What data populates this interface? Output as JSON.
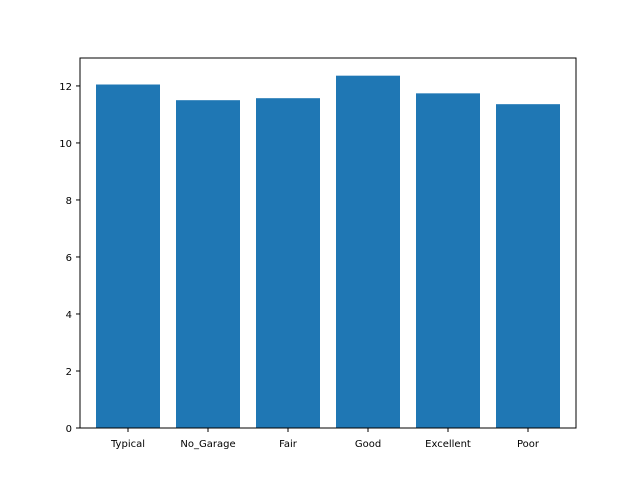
{
  "chart_data": {
    "type": "bar",
    "title": "",
    "xlabel": "",
    "ylabel": "",
    "categories": [
      "Typical",
      "No_Garage",
      "Fair",
      "Good",
      "Excellent",
      "Poor"
    ],
    "values": [
      12.05,
      11.5,
      11.57,
      12.36,
      11.74,
      11.36
    ],
    "ylim": [
      0,
      12.98
    ],
    "yticks": [
      "0",
      "2",
      "4",
      "6",
      "8",
      "10",
      "12"
    ],
    "grid": false,
    "legend": "none",
    "bar_color": "#1f77b4"
  }
}
